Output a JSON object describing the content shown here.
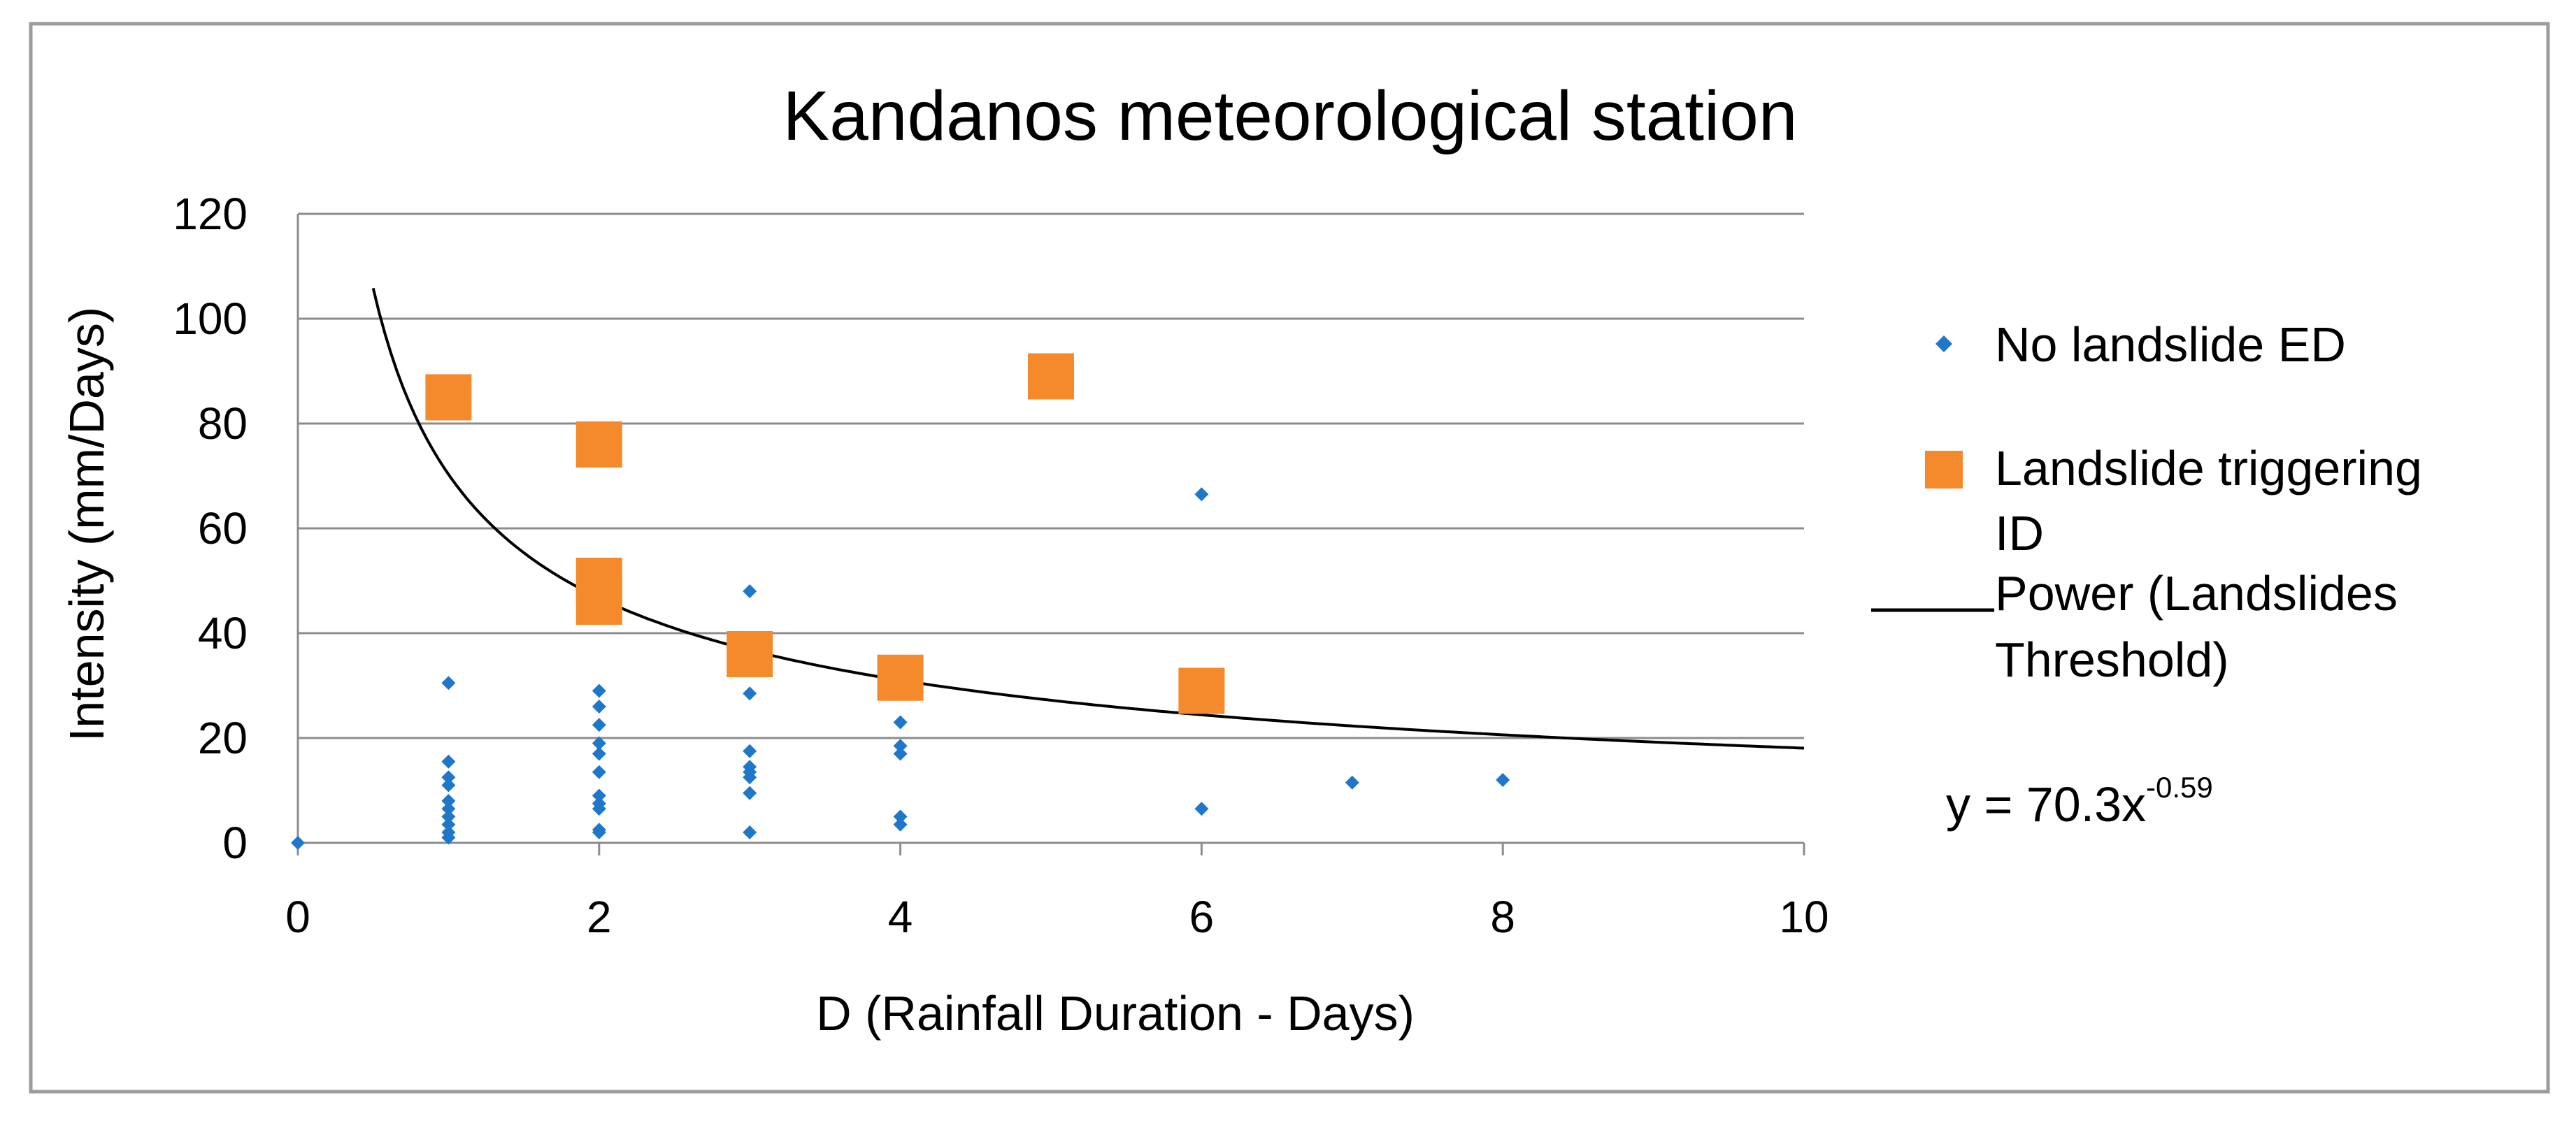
{
  "colors": {
    "no_landslide": "#1f77c9",
    "landslide": "#f58a2c",
    "threshold": "#000000",
    "grid": "#8c8c8c",
    "border": "#9c9c9c"
  },
  "chart_data": {
    "type": "scatter",
    "title": "Kandanos meteorological station",
    "xlabel": "D (Rainfall Duration - Days)",
    "ylabel": "Intensity (mm/Days)",
    "xlim": [
      0,
      10
    ],
    "ylim": [
      0,
      120
    ],
    "x_ticks": [
      "0",
      "2",
      "4",
      "6",
      "8",
      "10"
    ],
    "y_ticks": [
      "0",
      "20",
      "40",
      "60",
      "80",
      "100",
      "120"
    ],
    "grid": "horizontal",
    "legend_position": "right",
    "series": [
      {
        "name": "No landslide ED",
        "marker": "diamond",
        "points": [
          [
            0,
            0
          ],
          [
            1,
            30.5
          ],
          [
            1,
            15.5
          ],
          [
            1,
            12.5
          ],
          [
            1,
            11
          ],
          [
            1,
            8
          ],
          [
            1,
            6.5
          ],
          [
            1,
            5
          ],
          [
            1,
            3.5
          ],
          [
            1,
            2
          ],
          [
            1,
            1
          ],
          [
            2,
            29
          ],
          [
            2,
            26
          ],
          [
            2,
            22.5
          ],
          [
            2,
            19
          ],
          [
            2,
            17
          ],
          [
            2,
            13.5
          ],
          [
            2,
            9
          ],
          [
            2,
            7.5
          ],
          [
            2,
            6.5
          ],
          [
            2,
            2.5
          ],
          [
            2,
            2
          ],
          [
            3,
            48
          ],
          [
            3,
            28.5
          ],
          [
            3,
            17.5
          ],
          [
            3,
            14.5
          ],
          [
            3,
            13.5
          ],
          [
            3,
            12.5
          ],
          [
            3,
            9.5
          ],
          [
            3,
            2
          ],
          [
            4,
            23
          ],
          [
            4,
            18.5
          ],
          [
            4,
            17
          ],
          [
            4,
            5
          ],
          [
            4,
            3.5
          ],
          [
            6,
            66.5
          ],
          [
            6,
            6.5
          ],
          [
            7,
            11.5
          ],
          [
            8,
            12
          ]
        ]
      },
      {
        "name": "Landslide triggering ID",
        "marker": "square",
        "points": [
          [
            1,
            85
          ],
          [
            2,
            76
          ],
          [
            2,
            50
          ],
          [
            2,
            46
          ],
          [
            3,
            36
          ],
          [
            4,
            31.5
          ],
          [
            5,
            89
          ],
          [
            6,
            29
          ]
        ]
      },
      {
        "name": "Power (Landslides Threshold)",
        "marker": "line",
        "fit": {
          "a": 70.3,
          "b": -0.59,
          "x_start": 0.5,
          "x_end": 10
        }
      }
    ],
    "equation": {
      "base": "y = 70.3x",
      "exponent": "-0.59"
    }
  },
  "legend": {
    "items": [
      {
        "lines": [
          "No landslide ED"
        ]
      },
      {
        "lines": [
          "Landslide triggering",
          "ID"
        ]
      },
      {
        "lines": [
          "Power (Landslides",
          "Threshold)"
        ]
      }
    ]
  }
}
